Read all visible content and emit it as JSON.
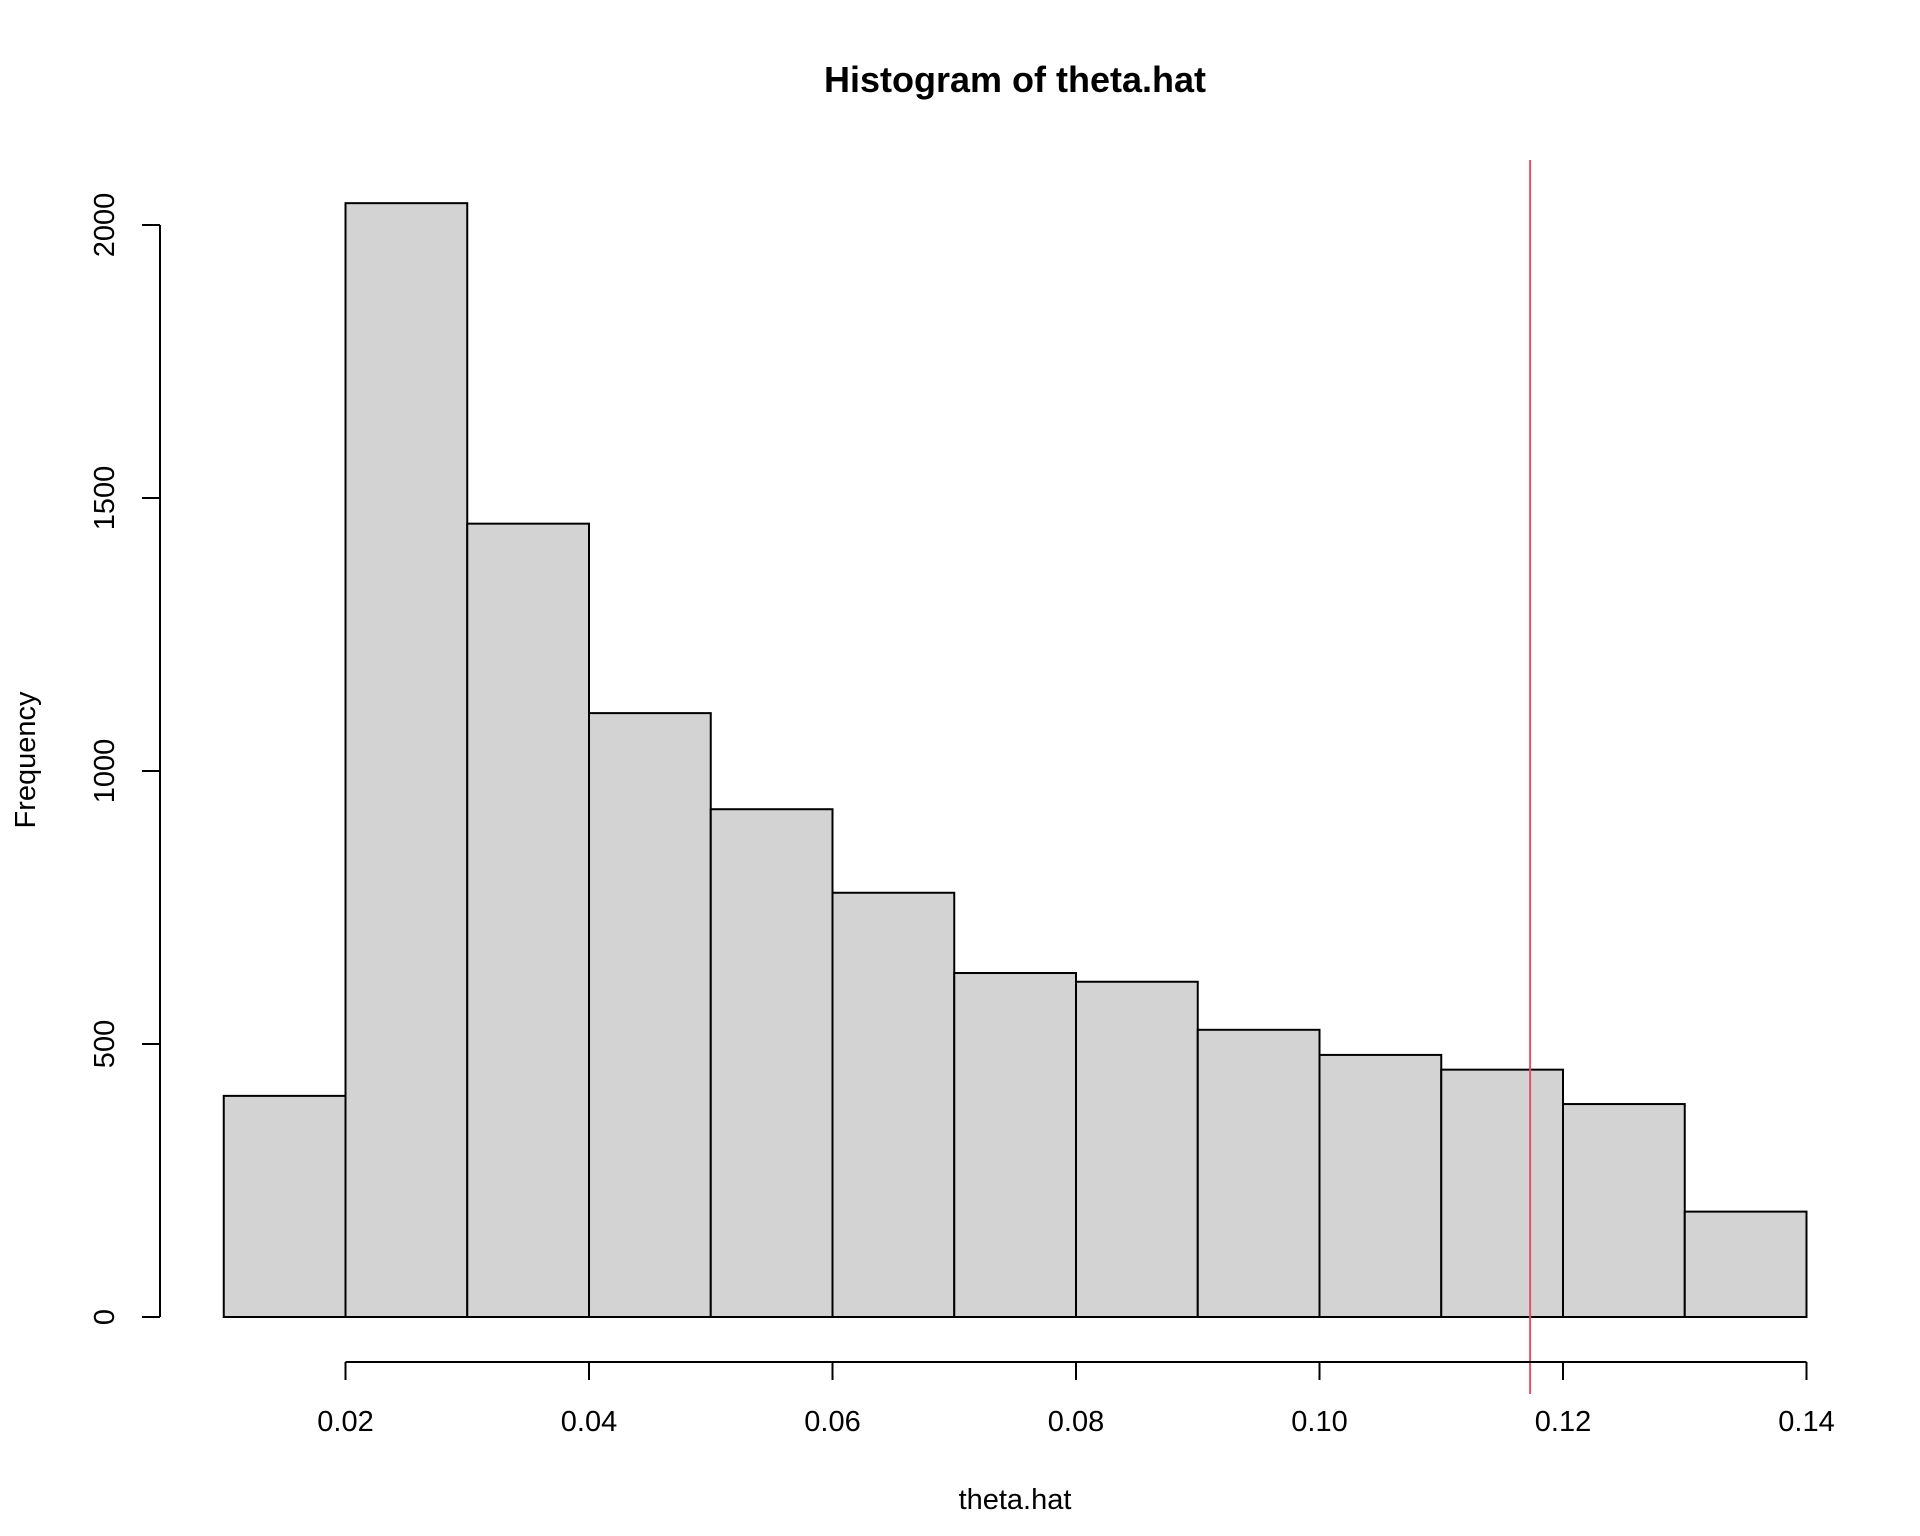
{
  "chart_data": {
    "type": "bar",
    "title": "Histogram of theta.hat",
    "xlabel": "theta.hat",
    "ylabel": "Frequency",
    "bin_edges": [
      0.01,
      0.02,
      0.03,
      0.04,
      0.05,
      0.06,
      0.07,
      0.08,
      0.09,
      0.1,
      0.11,
      0.12,
      0.13,
      0.14
    ],
    "values": [
      405,
      2040,
      1453,
      1106,
      930,
      777,
      630,
      614,
      526,
      480,
      453,
      390,
      193
    ],
    "xlim": [
      0.02,
      0.14
    ],
    "ylim": [
      0,
      2000
    ],
    "x_ticks": [
      0.02,
      0.04,
      0.06,
      0.08,
      0.1,
      0.12,
      0.14
    ],
    "x_tick_labels": [
      "0.02",
      "0.04",
      "0.06",
      "0.08",
      "0.10",
      "0.12",
      "0.14"
    ],
    "y_ticks": [
      0,
      500,
      1000,
      1500,
      2000
    ],
    "y_tick_labels": [
      "0",
      "500",
      "1000",
      "1500",
      "2000"
    ],
    "reference_line": {
      "x": 0.1173,
      "color": "#df536b"
    },
    "bar_fill": "#d3d3d3",
    "bar_stroke": "#000000"
  }
}
